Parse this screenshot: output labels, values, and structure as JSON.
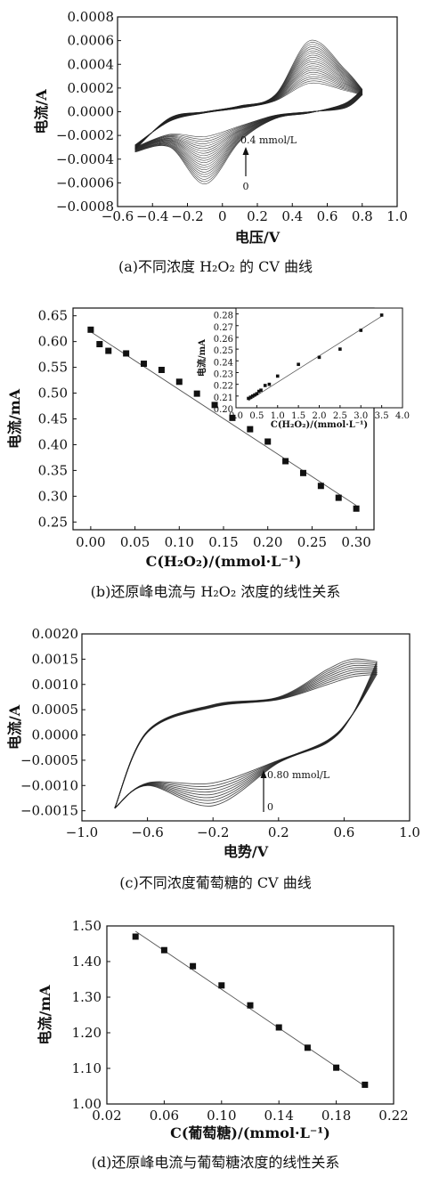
{
  "chart_data": [
    {
      "id": "a",
      "type": "line",
      "caption": "(a)不同浓度 H₂O₂ 的 CV 曲线",
      "xlabel": "电压/V",
      "ylabel": "电流/A",
      "xlim": [
        -0.6,
        1.0
      ],
      "ylim": [
        -0.0008,
        0.0008
      ],
      "xticks": [
        "−0.6",
        "−0.4",
        "−0.2",
        "0",
        "0.2",
        "0.4",
        "0.6",
        "0.8",
        "1.0"
      ],
      "yticks": [
        "0.0008",
        "0.0006",
        "0.0004",
        "0.0002",
        "0.0000",
        "−0.0002",
        "−0.0004",
        "−0.0006",
        "−0.0008"
      ],
      "annotation_top": "0.4 mmol/L",
      "annotation_bottom": "0",
      "curve_count": 21,
      "curve_data": {
        "potential_V": [
          -0.5,
          -0.3,
          -0.1,
          0.1,
          0.3,
          0.5,
          0.7,
          0.8
        ],
        "forward_A_at_0": [
          -0.00028,
          -8e-05,
          -1e-05,
          3e-05,
          9e-05,
          0.00024,
          0.00018,
          0.00014
        ],
        "forward_A_at_max": [
          -0.00032,
          -5e-05,
          0.0,
          5e-05,
          0.00014,
          0.0006,
          0.00036,
          0.00019
        ],
        "reverse_A_at_0": [
          -0.0003,
          -0.00019,
          -0.00021,
          -0.00012,
          -3e-05,
          0.0,
          3e-05,
          0.00014
        ],
        "reverse_A_at_max": [
          -0.00034,
          -0.0003,
          -0.00061,
          -0.00025,
          -6e-05,
          -1e-05,
          7e-05,
          0.00019
        ]
      }
    },
    {
      "id": "b",
      "type": "scatter",
      "caption": "(b)还原峰电流与 H₂O₂ 浓度的线性关系",
      "xlabel": "C(H₂O₂)/(mmol·L⁻¹)",
      "ylabel": "电流/mA",
      "xlim": [
        -0.02,
        0.32
      ],
      "ylim": [
        0.235,
        0.665
      ],
      "xticks": [
        "0.00",
        "0.05",
        "0.10",
        "0.15",
        "0.20",
        "0.25",
        "0.30"
      ],
      "yticks": [
        "0.65",
        "0.60",
        "0.55",
        "0.50",
        "0.45",
        "0.40",
        "0.35",
        "0.30",
        "0.25"
      ],
      "x": [
        0.0,
        0.01,
        0.02,
        0.04,
        0.06,
        0.08,
        0.1,
        0.12,
        0.14,
        0.16,
        0.18,
        0.2,
        0.22,
        0.24,
        0.26,
        0.28,
        0.3
      ],
      "y": [
        0.623,
        0.595,
        0.582,
        0.577,
        0.557,
        0.545,
        0.522,
        0.499,
        0.477,
        0.452,
        0.43,
        0.406,
        0.368,
        0.345,
        0.32,
        0.297,
        0.276
      ],
      "fit": {
        "x": [
          0.0,
          0.3
        ],
        "y": [
          0.619,
          0.282
        ]
      },
      "inset": {
        "type": "scatter",
        "xlabel": "C(H₂O₂)/(mmol·L⁻¹)",
        "ylabel": "电流/mA",
        "xlim": [
          0.0,
          4.0
        ],
        "ylim": [
          0.2,
          0.285
        ],
        "xticks": [
          "0.0",
          "0.5",
          "1.0",
          "1.5",
          "2.0",
          "2.5",
          "3.0",
          "3.5",
          "4.0"
        ],
        "yticks": [
          "0.28",
          "0.27",
          "0.26",
          "0.25",
          "0.24",
          "0.23",
          "0.22",
          "0.21",
          "0.20"
        ],
        "x": [
          0.3,
          0.35,
          0.4,
          0.45,
          0.5,
          0.55,
          0.6,
          0.7,
          0.8,
          1.0,
          1.5,
          2.0,
          2.5,
          3.0,
          3.5
        ],
        "y": [
          0.208,
          0.209,
          0.21,
          0.211,
          0.212,
          0.214,
          0.215,
          0.219,
          0.22,
          0.227,
          0.237,
          0.243,
          0.25,
          0.266,
          0.279
        ],
        "fit": {
          "x": [
            0.3,
            3.5
          ],
          "y": [
            0.206,
            0.278
          ]
        }
      }
    },
    {
      "id": "c",
      "type": "line",
      "caption": "(c)不同浓度葡萄糖的 CV 曲线",
      "xlabel": "电势/V",
      "ylabel": "电流/A",
      "xlim": [
        -1.0,
        1.0
      ],
      "ylim": [
        -0.0017,
        0.002
      ],
      "xticks": [
        "−1.0",
        "−0.6",
        "−0.2",
        "0.2",
        "0.6",
        "1.0"
      ],
      "yticks": [
        "0.0020",
        "0.0015",
        "0.0010",
        "0.0005",
        "0.0000",
        "−0.0005",
        "−0.0010",
        "−0.0015"
      ],
      "annotation_top": "0.80 mmol/L",
      "annotation_bottom": "0",
      "curve_count": 9,
      "curve_data": {
        "potential_V": [
          -0.8,
          -0.6,
          -0.2,
          0.2,
          0.5,
          0.65,
          0.8
        ],
        "forward_A_at_0": [
          -0.00145,
          5e-05,
          0.00055,
          0.0007,
          0.001,
          0.00115,
          0.0012
        ],
        "forward_A_at_max": [
          -0.00145,
          8e-05,
          0.0006,
          0.00075,
          0.0013,
          0.0015,
          0.00145
        ],
        "reverse_A_at_0": [
          -0.00145,
          -0.00095,
          -0.00095,
          -0.0005,
          -0.0001,
          0.0004,
          0.0012
        ],
        "reverse_A_at_max": [
          -0.00145,
          -0.001,
          -0.0014,
          -0.00055,
          -0.00015,
          0.0004,
          0.00145
        ]
      }
    },
    {
      "id": "d",
      "type": "scatter",
      "caption": "(d)还原峰电流与葡萄糖浓度的线性关系",
      "xlabel": "C(葡萄糖)/(mmol·L⁻¹)",
      "ylabel": "电流/mA",
      "xlim": [
        0.02,
        0.22
      ],
      "ylim": [
        1.0,
        1.5
      ],
      "xticks": [
        "0.02",
        "0.06",
        "0.10",
        "0.14",
        "0.18",
        "0.22"
      ],
      "yticks": [
        "1.50",
        "1.40",
        "1.30",
        "1.20",
        "1.10",
        "1.00"
      ],
      "x": [
        0.04,
        0.06,
        0.08,
        0.1,
        0.12,
        0.14,
        0.16,
        0.18,
        0.2
      ],
      "y": [
        1.47,
        1.432,
        1.387,
        1.333,
        1.277,
        1.215,
        1.158,
        1.102,
        1.054
      ],
      "fit": {
        "x": [
          0.04,
          0.2
        ],
        "y": [
          1.485,
          1.05
        ]
      }
    }
  ]
}
